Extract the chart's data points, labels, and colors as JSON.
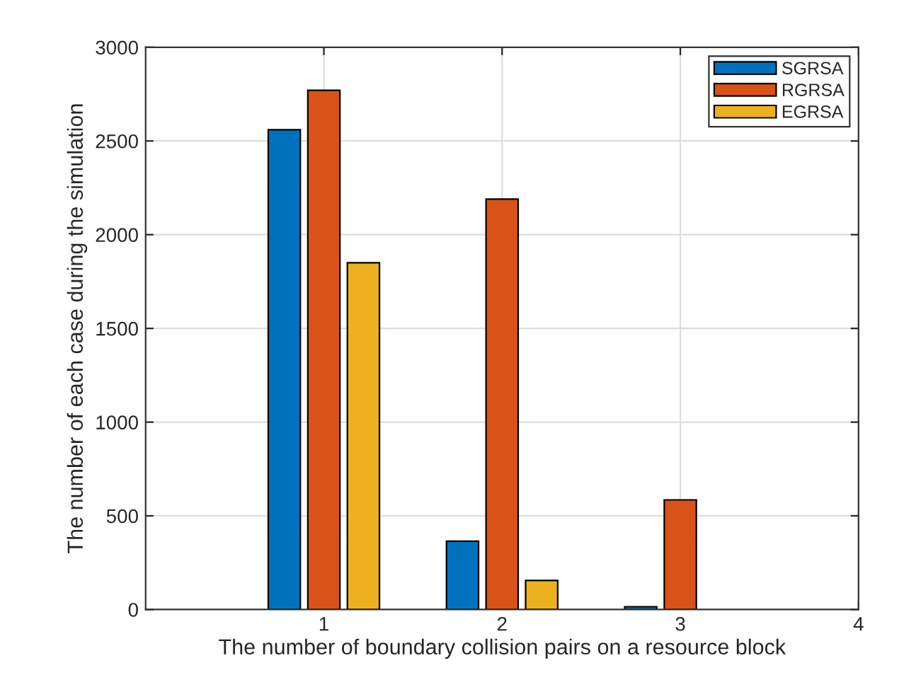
{
  "chart_data": {
    "type": "bar",
    "xlabel": "The number of boundary collision pairs on a resource block",
    "ylabel": "The number of each case during the simulation",
    "x": [
      1,
      2,
      3
    ],
    "series": [
      {
        "name": "SGRSA",
        "color": "#0072bd",
        "values": [
          2560,
          365,
          15
        ]
      },
      {
        "name": "RGRSA",
        "color": "#d95319",
        "values": [
          2770,
          2190,
          585
        ]
      },
      {
        "name": "EGRSA",
        "color": "#edb120",
        "values": [
          1850,
          155,
          null
        ]
      }
    ],
    "xlim": [
      0,
      4
    ],
    "xticks": [
      1,
      2,
      3,
      4
    ],
    "ylim": [
      0,
      3000
    ],
    "yticks": [
      0,
      500,
      1000,
      1500,
      2000,
      2500,
      3000
    ],
    "grid": true,
    "legend": "top right"
  }
}
